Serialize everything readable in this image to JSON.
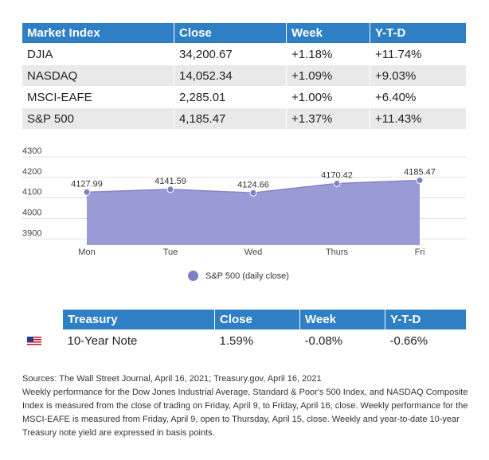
{
  "market_table": {
    "headers": [
      "Market Index",
      "Close",
      "Week",
      "Y-T-D"
    ],
    "rows": [
      [
        "DJIA",
        "34,200.67",
        "+1.18%",
        "+11.74%"
      ],
      [
        "NASDAQ",
        "14,052.34",
        "+1.09%",
        "+9.03%"
      ],
      [
        "MSCI-EAFE",
        "2,285.01",
        "+1.00%",
        "+6.40%"
      ],
      [
        "S&P 500",
        "4,185.47",
        "+1.37%",
        "+11.43%"
      ]
    ]
  },
  "chart_data": {
    "type": "area",
    "categories": [
      "Mon",
      "Tue",
      "Wed",
      "Thurs",
      "Fri"
    ],
    "series": [
      {
        "name": "S&P 500 (daily close)",
        "values": [
          4127.99,
          4141.59,
          4124.66,
          4170.42,
          4185.47
        ]
      }
    ],
    "data_labels": [
      "4127.99",
      "4141.59",
      "4124.66",
      "4170.42",
      "4185.47"
    ],
    "y_ticks": [
      "4300",
      "4200",
      "4100",
      "4000",
      "3900"
    ],
    "ylim": [
      3870,
      4300
    ],
    "grid": true,
    "legend_position": "bottom",
    "colors": {
      "fill": "#9a9ad6",
      "line": "#8585c8",
      "point": "#7f7fc6"
    }
  },
  "treasury_table": {
    "headers": [
      "",
      "Treasury",
      "Close",
      "Week",
      "Y-T-D"
    ],
    "rows": [
      {
        "flag_icon": "us-flag-icon",
        "name": "10-Year Note",
        "close": "1.59%",
        "week": "-0.08%",
        "ytd": "-0.66%"
      }
    ]
  },
  "notes": {
    "sources": "Sources: The Wall Street Journal, April 16, 2021; Treasury.gov, April 16, 2021",
    "body": "Weekly performance for the Dow Jones Industrial Average, Standard & Poor's 500 Index, and NASDAQ Composite Index is measured from the close of trading on Friday, April 9, to Friday, April 16, close. Weekly performance for the MSCI-EAFE is measured from Friday, April 9, open to Thursday, April 15, close. Weekly and year-to-date 10-year Treasury note yield are expressed in basis points."
  },
  "colors": {
    "header_blue": "#2f7fc5",
    "row_alt": "#e9e9e9"
  }
}
